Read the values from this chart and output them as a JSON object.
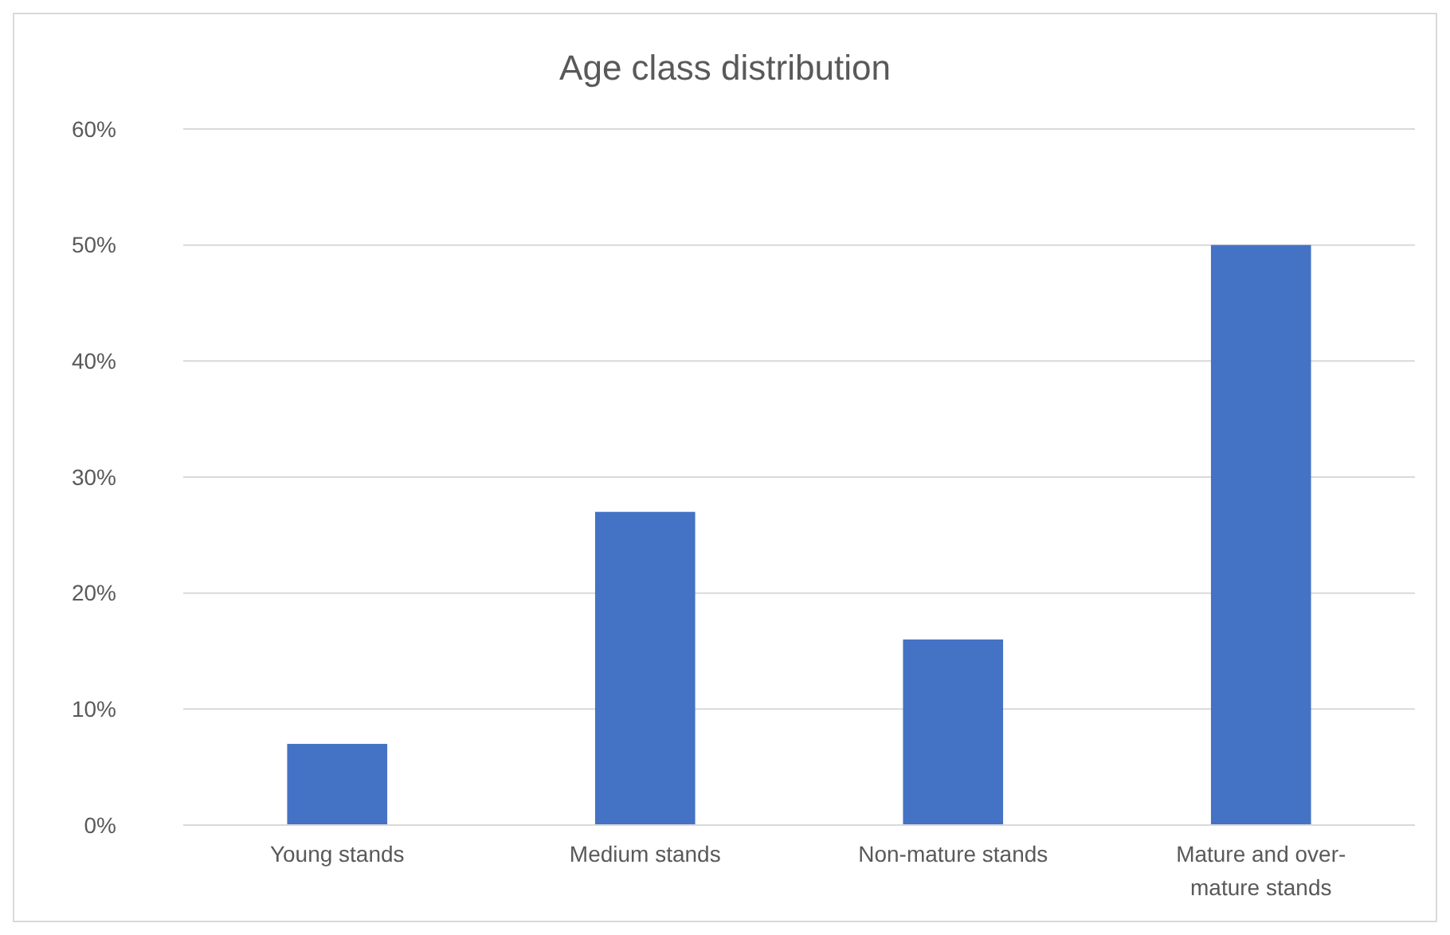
{
  "chart_data": {
    "type": "bar",
    "title": "Age class distribution",
    "categories": [
      "Young stands",
      "Medium stands",
      "Non-mature stands",
      "Mature and over-mature stands"
    ],
    "values": [
      7,
      27,
      16,
      50
    ],
    "color": "#4472c4",
    "ylim": [
      0,
      60
    ],
    "yticks": [
      {
        "value": 0,
        "label": "0%"
      },
      {
        "value": 10,
        "label": "10%"
      },
      {
        "value": 20,
        "label": "20%"
      },
      {
        "value": 30,
        "label": "30%"
      },
      {
        "value": 40,
        "label": "40%"
      },
      {
        "value": 50,
        "label": "50%"
      },
      {
        "value": 60,
        "label": "60%"
      }
    ],
    "grid": "y"
  }
}
